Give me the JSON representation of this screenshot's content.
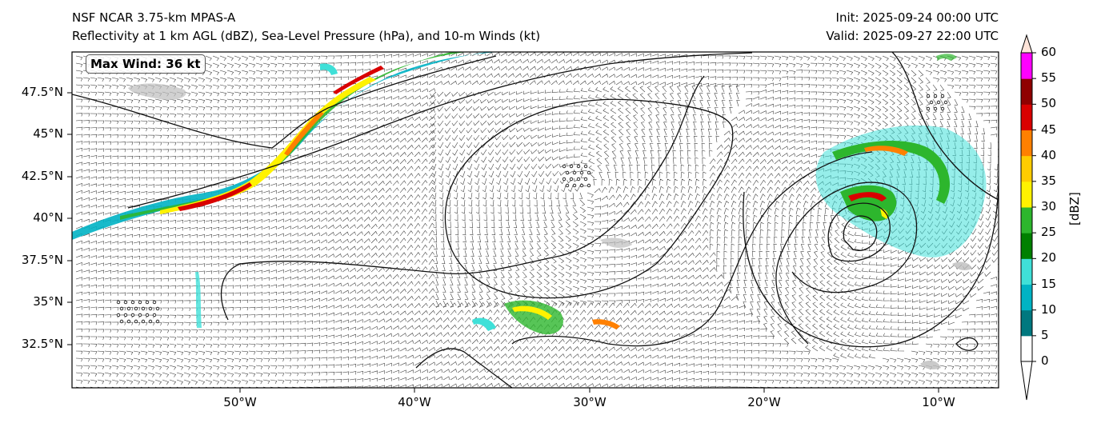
{
  "header": {
    "model": "NSF NCAR 3.75-km MPAS-A",
    "fields": "Reflectivity at 1 km AGL (dBZ), Sea-Level Pressure (hPa), and 10-m Winds (kt)",
    "init": "Init: 2025-09-24 00:00 UTC",
    "valid": "Valid: 2025-09-27 22:00 UTC"
  },
  "annotation": {
    "max_wind": "Max Wind: 36 kt"
  },
  "axes": {
    "lat_labels": [
      "47.5°N",
      "45°N",
      "42.5°N",
      "40°N",
      "37.5°N",
      "35°N",
      "32.5°N"
    ],
    "lon_labels": [
      "50°W",
      "40°W",
      "30°W",
      "20°W",
      "10°W"
    ],
    "lat_values": [
      47.5,
      45,
      42.5,
      40,
      37.5,
      35,
      32.5
    ],
    "lon_values": [
      -50,
      -40,
      -30,
      -20,
      -10
    ]
  },
  "colorbar": {
    "label": "[dBZ]",
    "ticks": [
      "0",
      "5",
      "10",
      "15",
      "20",
      "25",
      "30",
      "35",
      "40",
      "45",
      "50",
      "55",
      "60"
    ],
    "colors": [
      "#ffffff",
      "#00787f",
      "#00b3c4",
      "#3fe0d8",
      "#008000",
      "#2db62d",
      "#fff200",
      "#ffcc00",
      "#ff8000",
      "#d90000",
      "#8f0000",
      "#ff00ff",
      "#ffe4d9"
    ]
  },
  "map": {
    "land_color": "#ffffff",
    "coast_color": "#000000",
    "isobar_color": "#111111",
    "gray_precip_color": "#bdbdbd"
  }
}
